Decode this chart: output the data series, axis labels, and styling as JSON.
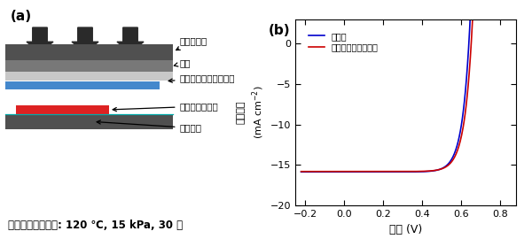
{
  "panel_a_label": "(a)",
  "panel_b_label": "(b)",
  "heater_label": "ヒーター板",
  "cloth_label": "布地",
  "hotmelt_film_label": "ホットメルトフィルム",
  "solar_cell_label": "超薄型太陽電池",
  "stage_label": "ステージ",
  "condition_text": "ホットメルト条件: 120 ℃, 15 kPa, 30 秒",
  "legend_before": "接着前",
  "legend_after": "ホットメルト接着後",
  "xlabel": "電圧 (V)",
  "ylabel_line1": "電流密度",
  "ylabel_line2": "(mA cm⁻²)",
  "xlim": [
    -0.25,
    0.88
  ],
  "ylim": [
    -20,
    3
  ],
  "xticks": [
    -0.2,
    0,
    0.2,
    0.4,
    0.6,
    0.8
  ],
  "yticks": [
    -20,
    -15,
    -10,
    -5,
    0
  ],
  "color_before": "#0000cc",
  "color_after": "#cc0000",
  "dark_gray": "#505050",
  "mid_gray": "#787878",
  "light_gray": "#c8c8c8",
  "blue_col": "#4488cc",
  "red_col": "#dd2222"
}
